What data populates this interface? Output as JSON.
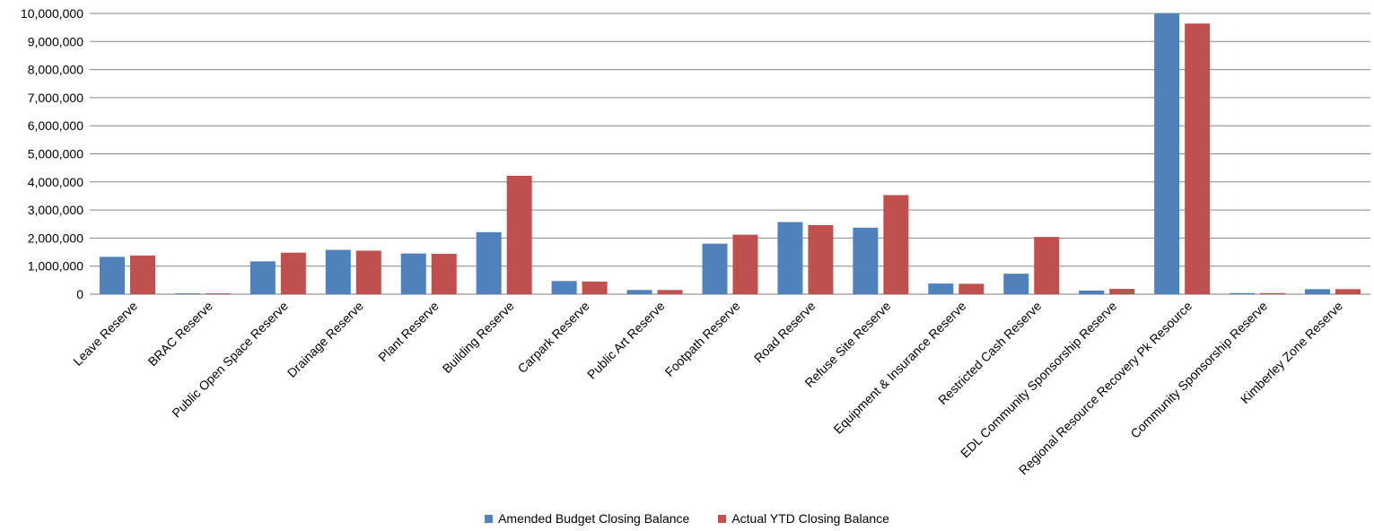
{
  "chart_data": {
    "type": "bar",
    "categories": [
      "Leave Reserve",
      "BRAC  Reserve",
      "Public Open Space Reserve",
      "Drainage Reserve",
      "Plant Reserve",
      "Building Reserve",
      "Carpark Reserve",
      "Public Art Reserve",
      "Footpath Reserve",
      "Road Reserve",
      "Refuse Site Reserve",
      "Equipment & Insurance Reserve",
      "Restricted Cash Reserve",
      "EDL Community Sponsorship Reserve",
      "Regional Resource Recovery Pk Resource",
      "Community Sponsorship Reserve",
      "Kimberley Zone Reserve"
    ],
    "series": [
      {
        "name": "Amended Budget Closing Balance",
        "color": "#4f81bd",
        "values": [
          1330000,
          30000,
          1170000,
          1580000,
          1450000,
          2210000,
          470000,
          150000,
          1800000,
          2570000,
          2370000,
          380000,
          730000,
          130000,
          10050000,
          40000,
          180000
        ]
      },
      {
        "name": "Actual YTD Closing Balance",
        "color": "#c0504d",
        "values": [
          1380000,
          30000,
          1480000,
          1550000,
          1440000,
          4220000,
          450000,
          150000,
          2120000,
          2460000,
          3530000,
          370000,
          2040000,
          190000,
          9640000,
          40000,
          180000
        ]
      }
    ],
    "yticks": [
      "0",
      "1,000,000",
      "2,000,000",
      "3,000,000",
      "4,000,000",
      "5,000,000",
      "6,000,000",
      "7,000,000",
      "8,000,000",
      "9,000,000",
      "10,000,000"
    ],
    "ylim": [
      0,
      10000000
    ],
    "grid": true,
    "legend_position": "bottom"
  }
}
